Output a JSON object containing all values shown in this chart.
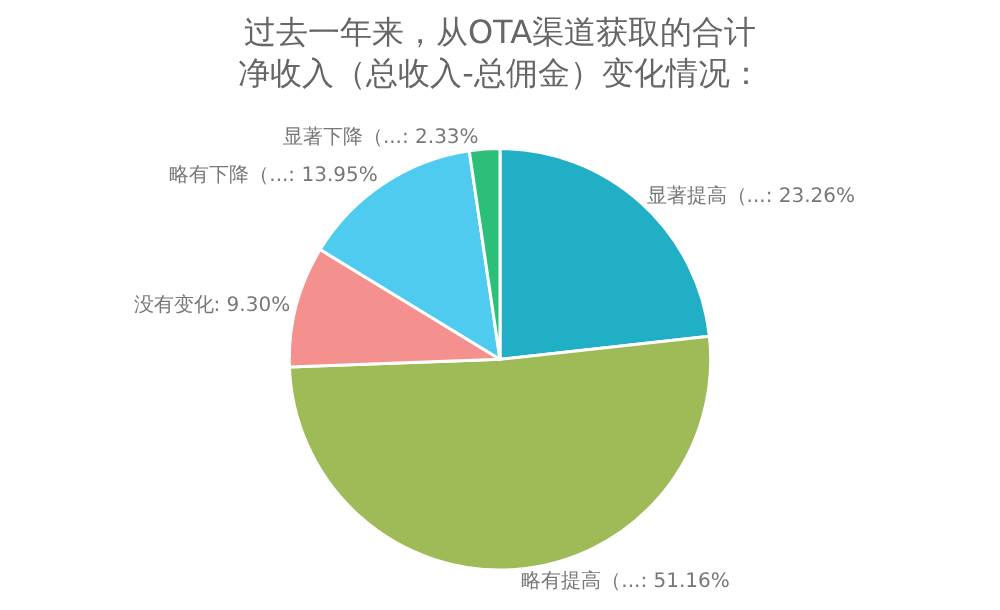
{
  "chart_data": {
    "type": "pie",
    "title": "过去一年来，从OTA渠道获取的合计净收入（总收入-总佣金）变化情况：",
    "categories": [
      "显著提高（...",
      "略有提高（...",
      "没有变化",
      "略有下降（...",
      "显著下降（..."
    ],
    "values": [
      23.26,
      51.16,
      9.3,
      13.95,
      2.33
    ],
    "value_labels": [
      "23.26%",
      "51.16%",
      "9.30%",
      "13.95%",
      "2.33%"
    ],
    "colors": [
      "#21afc6",
      "#9fbb58",
      "#f4908e",
      "#4ecbef",
      "#2bbf7a"
    ],
    "legend": false
  }
}
